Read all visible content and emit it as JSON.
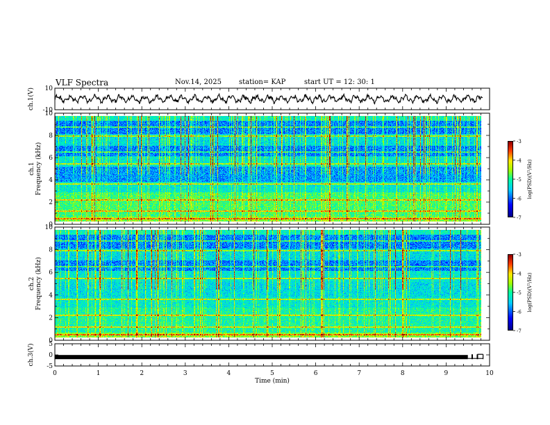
{
  "header": {
    "title": "VLF Spectra",
    "date": "Nov.14, 2025",
    "station": "station= KAP",
    "start": "start  UT  =    12: 30: 1"
  },
  "chart_data": [
    {
      "type": "line",
      "name": "ch1-waveform",
      "ylabel": "ch.1(V)",
      "ylim": [
        -10,
        10
      ],
      "yticklabels": [
        "10",
        "-10"
      ],
      "xlim": [
        0,
        10
      ],
      "series": [
        {
          "name": "ch.1",
          "x_range": [
            0,
            9.85
          ],
          "amplitude_approx": 4
        }
      ]
    },
    {
      "type": "heatmap",
      "name": "ch1-spectrogram",
      "ylabel_channel": "ch.1",
      "ylabel": "Frequency (kHz)",
      "ylim": [
        0,
        10
      ],
      "yticklabels": [
        "0",
        "2",
        "4",
        "6",
        "8",
        "10"
      ],
      "xlim": [
        0,
        10
      ],
      "data_x_range": [
        0,
        9.85
      ],
      "colorbar": {
        "label": "log(PSD)(V²/Hz)",
        "range": [
          -7,
          -3
        ],
        "ticks": [
          "-3",
          "-4",
          "-5",
          "-6",
          "-7"
        ]
      }
    },
    {
      "type": "heatmap",
      "name": "ch2-spectrogram",
      "ylabel_channel": "ch.2",
      "ylabel": "Frequency (kHz)",
      "ylim": [
        0,
        10
      ],
      "yticklabels": [
        "0",
        "2",
        "4",
        "6",
        "8",
        "10"
      ],
      "xlim": [
        0,
        10
      ],
      "data_x_range": [
        0,
        9.85
      ],
      "colorbar": {
        "label": "log(PSD)(V²/Hz)",
        "range": [
          -7,
          -3
        ],
        "ticks": [
          "-3",
          "-4",
          "-5",
          "-6",
          "-7"
        ]
      }
    },
    {
      "type": "line",
      "name": "ch3-trace",
      "ylabel": "ch.3(V)",
      "ylim": [
        -5,
        5
      ],
      "yticklabels": [
        "5",
        "0",
        "-5"
      ],
      "xlim": [
        0,
        10
      ],
      "series": [
        {
          "name": "ch.3",
          "x_range": [
            0,
            9.85
          ],
          "level": -1
        }
      ]
    }
  ],
  "xaxis": {
    "label": "Time  (min)",
    "ticks": [
      "0",
      "1",
      "2",
      "3",
      "4",
      "5",
      "6",
      "7",
      "8",
      "9",
      "10"
    ]
  },
  "colors": {
    "axes": "#000000",
    "trace": "#000000"
  }
}
